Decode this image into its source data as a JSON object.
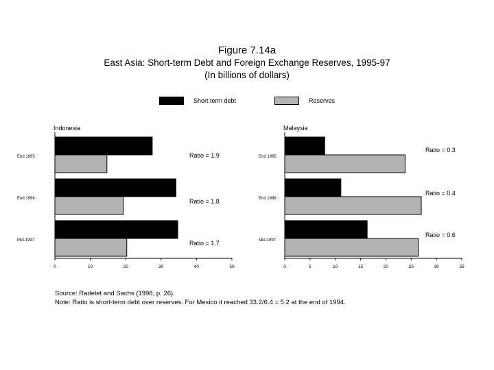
{
  "title": {
    "line1": "Figure 7.14a",
    "line2": "East Asia: Short-term Debt and Foreign Exchange Reserves, 1995-97",
    "line3": "(In billions of dollars)"
  },
  "legend": [
    {
      "label": "Short term debt",
      "color": "#000000"
    },
    {
      "label": "Reserves",
      "color": "#b3b3b3"
    }
  ],
  "chart_data": [
    {
      "type": "bar",
      "orientation": "horizontal",
      "title": "Indonesia",
      "categories": [
        "End 1995",
        "End 1996",
        "Mid-1997"
      ],
      "series": [
        {
          "name": "Short term debt",
          "values": [
            27.5,
            34.2,
            34.7
          ],
          "color": "#000000"
        },
        {
          "name": "Reserves",
          "values": [
            14.7,
            19.3,
            20.3
          ],
          "color": "#b3b3b3"
        }
      ],
      "ratios": [
        "Ratio = 1.9",
        "Ratio = 1.8",
        "Ratio = 1.7"
      ],
      "xlim": [
        0,
        50
      ],
      "xticks": [
        0,
        10,
        20,
        30,
        40,
        50
      ]
    },
    {
      "type": "bar",
      "orientation": "horizontal",
      "title": "Malaysia",
      "categories": [
        "End 1995",
        "End 1996",
        "Mid-1997"
      ],
      "series": [
        {
          "name": "Short term debt",
          "values": [
            7.9,
            11.1,
            16.3
          ],
          "color": "#000000"
        },
        {
          "name": "Reserves",
          "values": [
            23.8,
            27.0,
            26.4
          ],
          "color": "#b3b3b3"
        }
      ],
      "ratios": [
        "Ratio = 0.3",
        "Ratio = 0.4",
        "Ratio = 0.6"
      ],
      "xlim": [
        0,
        35
      ],
      "xticks": [
        0,
        5,
        10,
        15,
        20,
        25,
        30,
        35
      ]
    }
  ],
  "footer": {
    "source": "Source: Radelet and Sachs (1998, p. 26).",
    "note": "Note:  Ratio is short-term debt over reserves. For Mexico  it reached 33.2/6.4 = 5.2 at the end of 1994."
  }
}
